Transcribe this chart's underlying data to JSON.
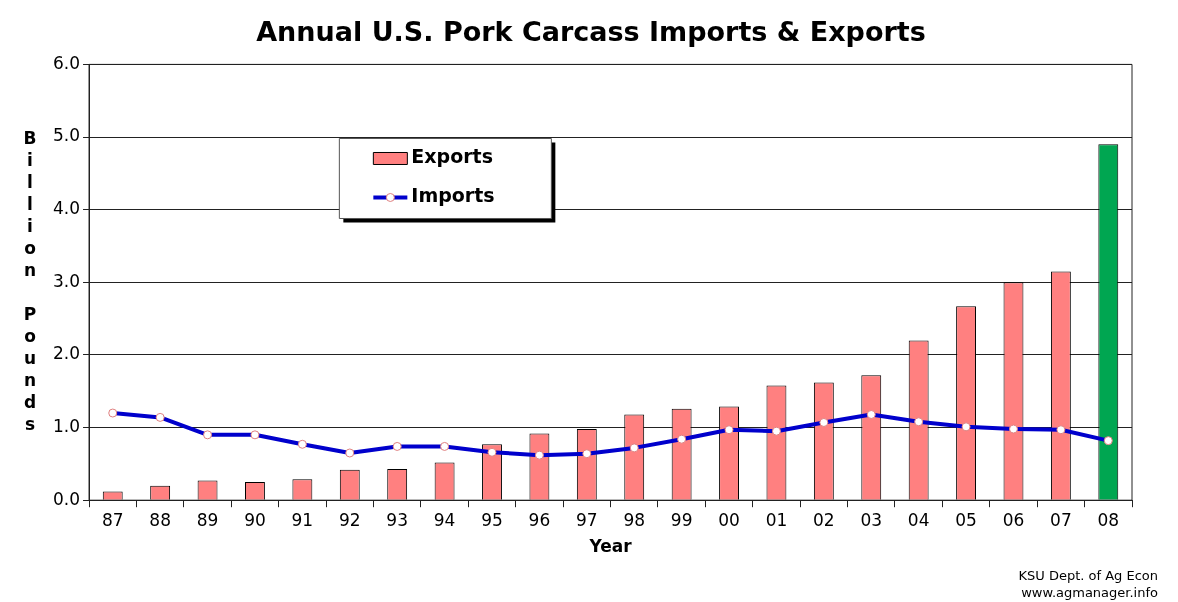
{
  "chart_data": {
    "type": "bar",
    "title": "Annual U.S. Pork Carcass Imports & Exports",
    "xlabel": "Year",
    "ylabel": "Billion Pounds",
    "categories": [
      "87",
      "88",
      "89",
      "90",
      "91",
      "92",
      "93",
      "94",
      "95",
      "96",
      "97",
      "98",
      "99",
      "00",
      "01",
      "02",
      "03",
      "04",
      "05",
      "06",
      "07",
      "08"
    ],
    "series": [
      {
        "name": "Exports",
        "color": "#ff8080",
        "colors": [
          "#ff8080",
          "#ff8080",
          "#ff8080",
          "#ff8080",
          "#ff8080",
          "#ff8080",
          "#ff8080",
          "#ff8080",
          "#ff8080",
          "#ff8080",
          "#ff8080",
          "#ff8080",
          "#ff8080",
          "#ff8080",
          "#ff8080",
          "#ff8080",
          "#ff8080",
          "#ff8080",
          "#ff8080",
          "#ff8080",
          "#ff8080",
          "#00a651"
        ],
        "values": [
          0.12,
          0.2,
          0.27,
          0.25,
          0.29,
          0.42,
          0.43,
          0.52,
          0.77,
          0.92,
          0.98,
          1.18,
          1.26,
          1.29,
          1.58,
          1.62,
          1.72,
          2.2,
          2.67,
          3.0,
          3.15,
          4.9
        ]
      },
      {
        "name": "Imports",
        "type": "line",
        "color": "#0000cc",
        "marker": "circle",
        "values": [
          1.2,
          1.14,
          0.9,
          0.9,
          0.77,
          0.65,
          0.74,
          0.74,
          0.66,
          0.62,
          0.64,
          0.72,
          0.84,
          0.97,
          0.95,
          1.07,
          1.18,
          1.08,
          1.01,
          0.98,
          0.97,
          0.82
        ]
      }
    ],
    "ylim": [
      0,
      6
    ],
    "yticks": [
      {
        "value": 0,
        "label": "0.0"
      },
      {
        "value": 1,
        "label": "1.0"
      },
      {
        "value": 2,
        "label": "2.0"
      },
      {
        "value": 3,
        "label": "3.0"
      },
      {
        "value": 4,
        "label": "4.0"
      },
      {
        "value": 5,
        "label": "5.0"
      },
      {
        "value": 6,
        "label": "6.0"
      }
    ],
    "grid": "y",
    "legend": "top",
    "annotations": [
      "KSU Dept. of Ag Econ",
      "www.agmanager.info"
    ]
  }
}
